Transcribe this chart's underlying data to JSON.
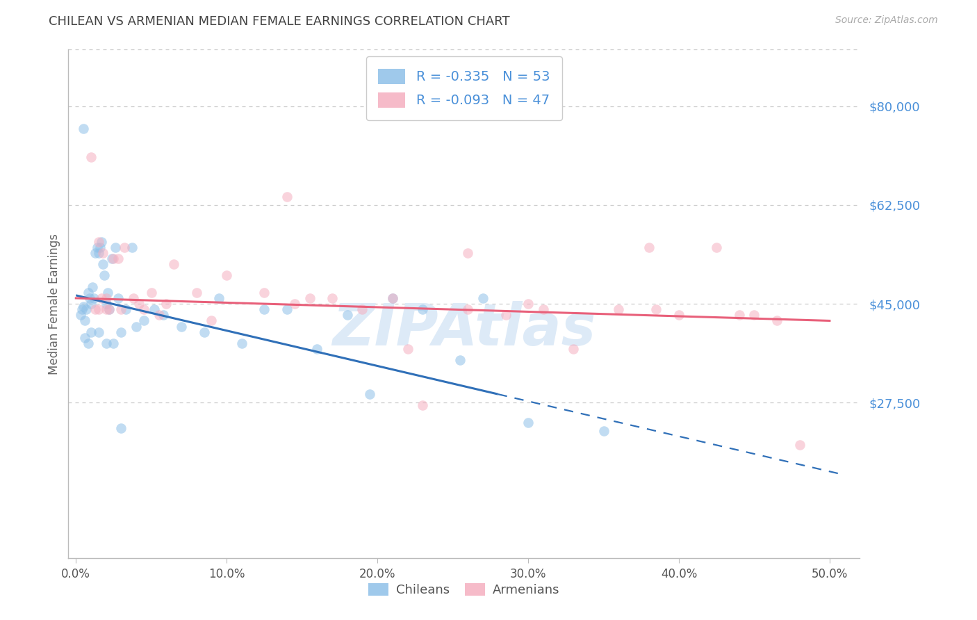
{
  "title": "CHILEAN VS ARMENIAN MEDIAN FEMALE EARNINGS CORRELATION CHART",
  "source": "Source: ZipAtlas.com",
  "ylabel": "Median Female Earnings",
  "legend_labels": [
    "Chileans",
    "Armenians"
  ],
  "y_tick_labels": [
    "$80,000",
    "$62,500",
    "$45,000",
    "$27,500"
  ],
  "y_tick_values": [
    80000,
    62500,
    45000,
    27500
  ],
  "x_tick_labels": [
    "0.0%",
    "10.0%",
    "20.0%",
    "30.0%",
    "40.0%",
    "50.0%"
  ],
  "x_tick_values": [
    0.0,
    10.0,
    20.0,
    30.0,
    40.0,
    50.0
  ],
  "xlim": [
    -0.5,
    52.0
  ],
  "ylim": [
    0,
    90000
  ],
  "r_chilean": -0.335,
  "n_chilean": 53,
  "r_armenian": -0.093,
  "n_armenian": 47,
  "chilean_color": "#8ec0e8",
  "armenian_color": "#f5afc0",
  "chilean_line_color": "#3070b8",
  "armenian_line_color": "#e8607a",
  "watermark": "ZIPAtlas",
  "watermark_color": "#ddeaf7",
  "background_color": "#ffffff",
  "grid_color": "#cccccc",
  "title_color": "#444444",
  "axis_label_color": "#666666",
  "legend_text_color": "#4a90d9",
  "tick_color_right": "#4a90d9",
  "scatter_size": 110,
  "scatter_alpha": 0.55,
  "chilean_x": [
    0.3,
    0.4,
    0.5,
    0.6,
    0.7,
    0.8,
    0.9,
    1.0,
    1.1,
    1.2,
    1.3,
    1.4,
    1.5,
    1.6,
    1.7,
    1.8,
    1.9,
    2.0,
    2.1,
    2.2,
    2.4,
    2.6,
    2.8,
    3.0,
    3.3,
    3.7,
    4.0,
    4.5,
    5.2,
    5.8,
    7.0,
    8.5,
    9.5,
    11.0,
    12.5,
    14.0,
    16.0,
    18.0,
    19.5,
    21.0,
    23.0,
    25.5,
    27.0,
    30.0,
    35.0,
    0.5,
    0.6,
    0.8,
    1.0,
    1.5,
    2.0,
    2.5,
    3.0
  ],
  "chilean_y": [
    43000,
    44000,
    44500,
    42000,
    44000,
    47000,
    46000,
    45000,
    48000,
    46000,
    54000,
    55000,
    54000,
    55000,
    56000,
    52000,
    50000,
    45000,
    47000,
    44000,
    53000,
    55000,
    46000,
    40000,
    44000,
    55000,
    41000,
    42000,
    44000,
    43000,
    41000,
    40000,
    46000,
    38000,
    44000,
    44000,
    37000,
    43000,
    29000,
    46000,
    44000,
    35000,
    46000,
    24000,
    22500,
    76000,
    39000,
    38000,
    40000,
    40000,
    38000,
    38000,
    23000
  ],
  "armenian_x": [
    1.0,
    1.3,
    1.5,
    1.7,
    1.8,
    2.0,
    2.2,
    2.5,
    2.8,
    3.2,
    3.8,
    4.2,
    5.0,
    5.5,
    6.5,
    8.0,
    10.0,
    12.5,
    14.0,
    15.5,
    17.0,
    19.0,
    21.0,
    23.0,
    26.0,
    28.5,
    31.0,
    33.0,
    36.0,
    38.5,
    40.0,
    42.5,
    44.0,
    46.5,
    1.5,
    2.0,
    3.0,
    4.5,
    6.0,
    9.0,
    14.5,
    22.0,
    30.0,
    38.0,
    45.0,
    26.0,
    48.0
  ],
  "armenian_y": [
    71000,
    44000,
    56000,
    46000,
    54000,
    44000,
    44000,
    53000,
    53000,
    55000,
    46000,
    45000,
    47000,
    43000,
    52000,
    47000,
    50000,
    47000,
    64000,
    46000,
    46000,
    44000,
    46000,
    27000,
    54000,
    43000,
    44000,
    37000,
    44000,
    44000,
    43000,
    55000,
    43000,
    42000,
    44000,
    46000,
    44000,
    44000,
    45000,
    42000,
    45000,
    37000,
    45000,
    55000,
    43000,
    44000,
    20000
  ],
  "chilean_line_x0": 0.0,
  "chilean_line_y0": 46500,
  "chilean_line_x1": 28.0,
  "chilean_line_y1": 29000,
  "chilean_dash_x0": 28.0,
  "chilean_dash_y0": 29000,
  "chilean_dash_x1": 51.0,
  "chilean_dash_y1": 14700,
  "armenian_line_x0": 0.0,
  "armenian_line_y0": 46000,
  "armenian_line_x1": 50.0,
  "armenian_line_y1": 42000
}
